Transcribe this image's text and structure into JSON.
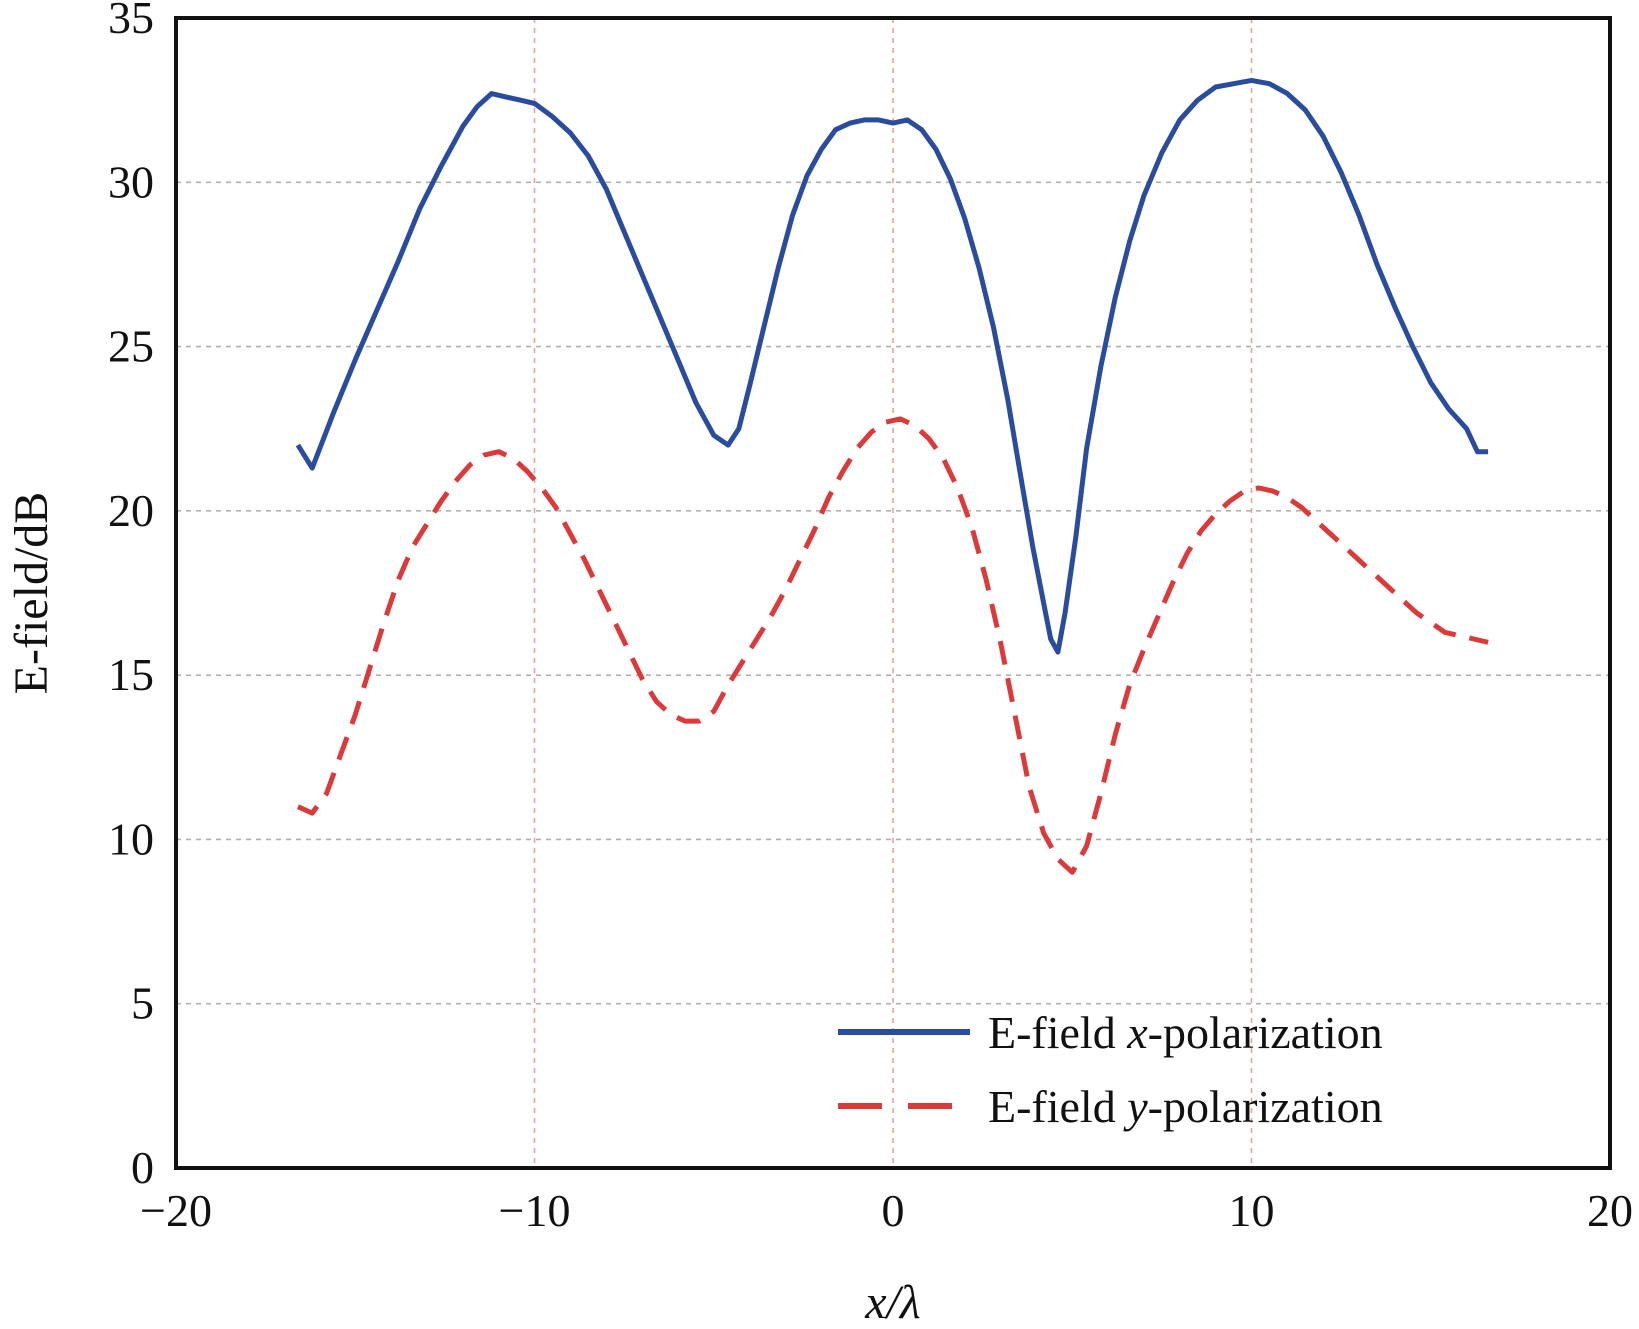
{
  "chart_data": {
    "type": "line",
    "title": "",
    "xlabel_main": "x",
    "xlabel_rest": "/λ",
    "ylabel": "E-field/dB",
    "xlim": [
      -20,
      20
    ],
    "ylim": [
      0,
      35
    ],
    "xticks": [
      -20,
      -10,
      0,
      10,
      20
    ],
    "xtick_labels": [
      "−20",
      "−10",
      "0",
      "10",
      "20"
    ],
    "yticks": [
      0,
      5,
      10,
      15,
      20,
      25,
      30,
      35
    ],
    "ytick_labels": [
      "0",
      "5",
      "10",
      "15",
      "20",
      "25",
      "30",
      "35"
    ],
    "grid": true,
    "legend_position": "bottom-right",
    "series": [
      {
        "name": "E-field x-polarization",
        "legend_prefix": "E-field ",
        "legend_var": "x",
        "legend_suffix": "-polarization",
        "color": "#2a4c9e",
        "dash": "solid",
        "x": [
          -16.6,
          -16.2,
          -15.6,
          -15.0,
          -14.4,
          -13.8,
          -13.2,
          -12.6,
          -12.0,
          -11.6,
          -11.2,
          -10.8,
          -10.4,
          -10.0,
          -9.5,
          -9.0,
          -8.5,
          -8.0,
          -7.5,
          -7.0,
          -6.5,
          -6.0,
          -5.5,
          -5.0,
          -4.6,
          -4.3,
          -4.0,
          -3.6,
          -3.2,
          -2.8,
          -2.4,
          -2.0,
          -1.6,
          -1.2,
          -0.8,
          -0.4,
          0.0,
          0.4,
          0.8,
          1.2,
          1.6,
          2.0,
          2.4,
          2.8,
          3.2,
          3.6,
          3.9,
          4.2,
          4.4,
          4.6,
          4.8,
          5.1,
          5.4,
          5.8,
          6.2,
          6.6,
          7.0,
          7.5,
          8.0,
          8.5,
          9.0,
          9.5,
          10.0,
          10.5,
          11.0,
          11.5,
          12.0,
          12.5,
          13.0,
          13.5,
          14.0,
          14.5,
          15.0,
          15.5,
          16.0,
          16.3,
          16.6
        ],
        "values": [
          22.0,
          21.3,
          23.0,
          24.6,
          26.1,
          27.6,
          29.2,
          30.5,
          31.7,
          32.3,
          32.7,
          32.6,
          32.5,
          32.4,
          32.0,
          31.5,
          30.8,
          29.8,
          28.5,
          27.2,
          25.9,
          24.6,
          23.3,
          22.3,
          22.0,
          22.5,
          23.8,
          25.6,
          27.4,
          29.0,
          30.2,
          31.0,
          31.6,
          31.8,
          31.9,
          31.9,
          31.8,
          31.9,
          31.6,
          31.0,
          30.1,
          28.9,
          27.4,
          25.6,
          23.4,
          20.8,
          18.9,
          17.2,
          16.1,
          15.7,
          16.9,
          19.2,
          21.9,
          24.4,
          26.5,
          28.2,
          29.6,
          30.9,
          31.9,
          32.5,
          32.9,
          33.0,
          33.1,
          33.0,
          32.7,
          32.2,
          31.4,
          30.3,
          29.0,
          27.5,
          26.2,
          25.0,
          23.9,
          23.1,
          22.5,
          21.8,
          21.8
        ]
      },
      {
        "name": "E-field y-polarization",
        "legend_prefix": "E-field ",
        "legend_var": "y",
        "legend_suffix": "-polarization",
        "color": "#dc3a3a",
        "dash": "dashed",
        "x": [
          -16.6,
          -16.2,
          -15.8,
          -15.4,
          -15.0,
          -14.6,
          -14.2,
          -13.8,
          -13.4,
          -13.0,
          -12.6,
          -12.2,
          -11.8,
          -11.4,
          -11.0,
          -10.6,
          -10.2,
          -9.8,
          -9.4,
          -9.0,
          -8.6,
          -8.2,
          -7.8,
          -7.4,
          -7.0,
          -6.6,
          -6.2,
          -5.8,
          -5.4,
          -5.0,
          -4.6,
          -4.2,
          -3.8,
          -3.4,
          -3.0,
          -2.6,
          -2.2,
          -1.8,
          -1.4,
          -1.0,
          -0.6,
          -0.2,
          0.2,
          0.6,
          1.0,
          1.4,
          1.8,
          2.2,
          2.6,
          3.0,
          3.4,
          3.8,
          4.2,
          4.6,
          5.0,
          5.4,
          5.8,
          6.2,
          6.6,
          7.0,
          7.4,
          7.8,
          8.2,
          8.6,
          9.0,
          9.4,
          9.8,
          10.2,
          10.6,
          11.0,
          11.4,
          11.8,
          12.2,
          12.6,
          13.0,
          13.4,
          13.8,
          14.2,
          14.6,
          15.0,
          15.4,
          15.8,
          16.2,
          16.6
        ],
        "values": [
          11.0,
          10.8,
          11.4,
          12.6,
          13.8,
          15.2,
          16.6,
          17.9,
          18.9,
          19.6,
          20.3,
          20.9,
          21.4,
          21.7,
          21.8,
          21.6,
          21.2,
          20.7,
          20.1,
          19.3,
          18.5,
          17.6,
          16.7,
          15.8,
          14.9,
          14.2,
          13.8,
          13.6,
          13.6,
          13.9,
          14.7,
          15.4,
          16.1,
          16.8,
          17.6,
          18.5,
          19.4,
          20.4,
          21.2,
          21.9,
          22.4,
          22.7,
          22.8,
          22.6,
          22.2,
          21.6,
          20.7,
          19.5,
          17.9,
          16.0,
          13.8,
          11.6,
          10.2,
          9.4,
          9.0,
          9.8,
          11.4,
          13.2,
          14.7,
          15.8,
          16.8,
          17.8,
          18.7,
          19.4,
          19.9,
          20.3,
          20.6,
          20.7,
          20.6,
          20.4,
          20.1,
          19.7,
          19.3,
          18.9,
          18.5,
          18.1,
          17.7,
          17.3,
          16.9,
          16.6,
          16.3,
          16.2,
          16.1,
          16.0
        ]
      }
    ]
  }
}
